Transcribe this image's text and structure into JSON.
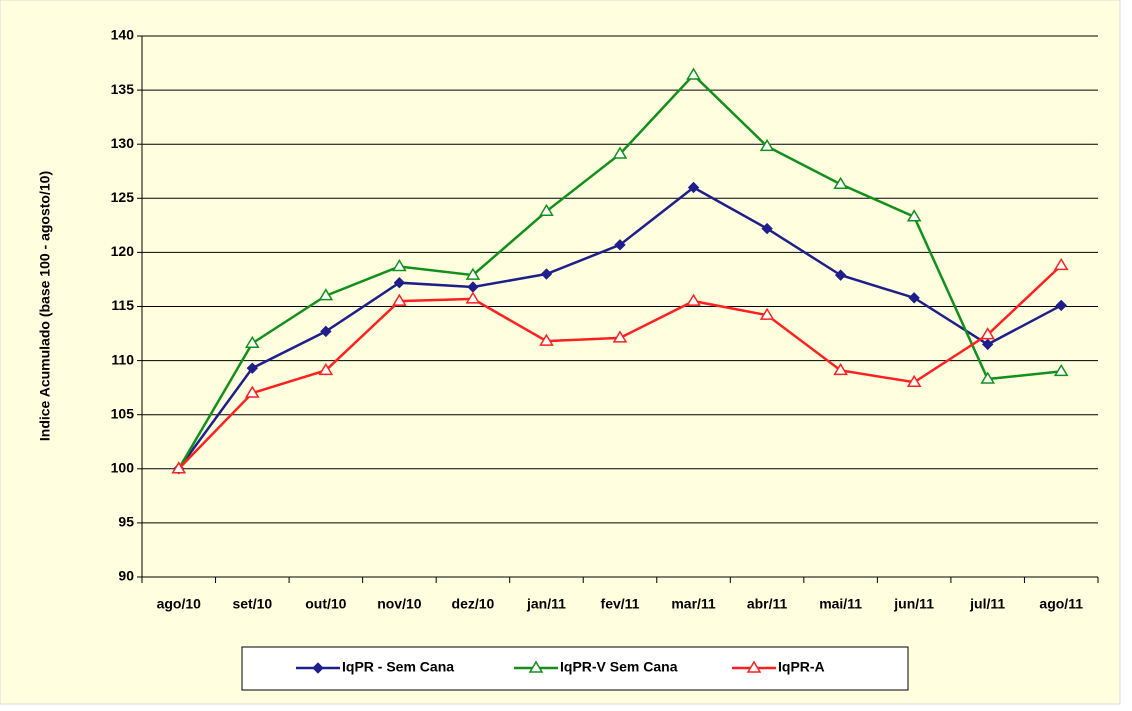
{
  "chart_data": {
    "type": "line",
    "y_label": "Indice Acumulado (base 100 - agosto/10)",
    "categories": [
      "ago/10",
      "set/10",
      "out/10",
      "nov/10",
      "dez/10",
      "jan/11",
      "fev/11",
      "mar/11",
      "abr/11",
      "mai/11",
      "jun/11",
      "jul/11",
      "ago/11"
    ],
    "series": [
      {
        "name": "IqPR - Sem Cana",
        "color": "#1f1f8c",
        "marker": "diamond",
        "values": [
          100,
          109.3,
          112.7,
          117.2,
          116.8,
          118,
          120.7,
          126,
          122.2,
          117.9,
          115.8,
          111.5,
          115.1
        ]
      },
      {
        "name": "IqPR-V Sem Cana",
        "color": "#12901c",
        "marker": "triangle",
        "values": [
          100,
          111.6,
          116,
          118.7,
          117.9,
          123.8,
          129.1,
          136.4,
          129.8,
          126.3,
          123.3,
          108.3,
          109
        ]
      },
      {
        "name": "IqPR-A",
        "color": "#ff2020",
        "marker": "triangle",
        "values": [
          100,
          107,
          109.1,
          115.5,
          115.7,
          111.8,
          112.1,
          115.5,
          114.2,
          109.1,
          108,
          112.4,
          118.8
        ]
      }
    ],
    "ylim": [
      90,
      140
    ],
    "yticks": [
      90,
      95,
      100,
      105,
      110,
      115,
      120,
      125,
      130,
      135,
      140
    ],
    "grid": true,
    "legend": "bottom"
  }
}
